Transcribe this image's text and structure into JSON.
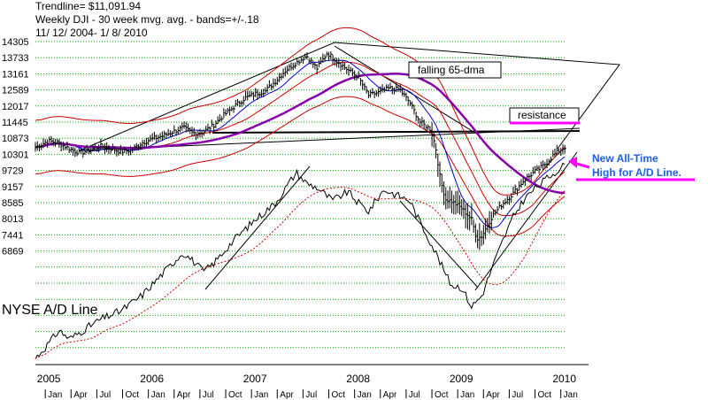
{
  "header": {
    "trendline": "Trendline= $11,091.94",
    "title": "Weekly DJI - 30 week mvg. avg. - bands=+/-.18",
    "date_range": "11/ 12/ 2004- 1/ 8/ 2010"
  },
  "annotations": {
    "falling_dma": "falling 65-dma",
    "resistance": "resistance",
    "ad_high_line1": "New All-Time",
    "ad_high_line2": "High for A/D Line.",
    "ad_line_label": "NYSE A/D Line"
  },
  "colors": {
    "price": "#000000",
    "upper_band": "#cc0000",
    "lower_band": "#cc0000",
    "ma30": "#cc0000",
    "ma65": "#8800aa",
    "blue_ma": "#0000cc",
    "grid": "#00aa00",
    "ad_ma": "#cc0000",
    "highlight": "#ff00ff",
    "annotation_blue": "#1a5fe6"
  },
  "chart_data": {
    "type": "line",
    "y_ticks": [
      14305,
      13733,
      13161,
      12589,
      12017,
      11445,
      10873,
      10301,
      9729,
      9157,
      8585,
      8013,
      7441,
      6869
    ],
    "x_years": [
      "2005",
      "2006",
      "2007",
      "2008",
      "2009",
      "2010"
    ],
    "x_months": [
      "Jan",
      "Apr",
      "Jul",
      "Oct",
      "Jan",
      "Apr",
      "Jul",
      "Oct",
      "Jan",
      "Apr",
      "Jul",
      "Oct",
      "Jan",
      "Apr",
      "Jul",
      "Oct",
      "Jan",
      "Apr",
      "Jul",
      "Oct",
      "Jan"
    ],
    "x_range": [
      2004.87,
      2010.02
    ],
    "grid": true,
    "series": [
      {
        "key": "dji",
        "x": [
          2004.87,
          2005.0,
          2005.1,
          2005.2,
          2005.3,
          2005.4,
          2005.5,
          2005.6,
          2005.7,
          2005.8,
          2005.9,
          2006.0,
          2006.1,
          2006.2,
          2006.3,
          2006.4,
          2006.5,
          2006.6,
          2006.7,
          2006.8,
          2006.9,
          2007.0,
          2007.1,
          2007.2,
          2007.3,
          2007.4,
          2007.5,
          2007.6,
          2007.7,
          2007.8,
          2007.9,
          2008.0,
          2008.1,
          2008.2,
          2008.3,
          2008.4,
          2008.5,
          2008.6,
          2008.7,
          2008.75,
          2008.8,
          2008.85,
          2008.9,
          2009.0,
          2009.1,
          2009.15,
          2009.2,
          2009.3,
          2009.4,
          2009.5,
          2009.6,
          2009.7,
          2009.8,
          2009.9,
          2010.02
        ],
        "y": [
          10550,
          10780,
          10700,
          10500,
          10350,
          10450,
          10600,
          10500,
          10400,
          10450,
          10700,
          10850,
          10950,
          11100,
          11250,
          11050,
          11100,
          11350,
          11700,
          12000,
          12300,
          12450,
          12550,
          12900,
          13300,
          13550,
          13800,
          13350,
          13900,
          13600,
          13300,
          13050,
          12400,
          12500,
          12650,
          12600,
          12150,
          11450,
          11200,
          10600,
          9350,
          8700,
          8650,
          8400,
          8000,
          7300,
          7400,
          8100,
          8550,
          8900,
          9350,
          9650,
          9900,
          10300,
          10600
        ]
      },
      {
        "key": "ad_line",
        "x": [
          2004.87,
          2005.0,
          2005.1,
          2005.2,
          2005.3,
          2005.5,
          2005.7,
          2005.9,
          2006.1,
          2006.3,
          2006.4,
          2006.5,
          2006.6,
          2006.8,
          2007.0,
          2007.2,
          2007.4,
          2007.5,
          2007.6,
          2007.75,
          2007.9,
          2008.0,
          2008.1,
          2008.25,
          2008.4,
          2008.5,
          2008.6,
          2008.7,
          2008.8,
          2008.9,
          2009.0,
          2009.1,
          2009.2,
          2009.3,
          2009.4,
          2009.5,
          2009.6,
          2009.7,
          2009.85,
          2010.02
        ],
        "y": [
          5000,
          5350,
          5650,
          5450,
          5600,
          5900,
          6100,
          6450,
          6950,
          7450,
          7250,
          7000,
          7200,
          7750,
          8200,
          8600,
          9300,
          9050,
          8950,
          8650,
          8850,
          8600,
          8400,
          8900,
          8750,
          8650,
          8150,
          7700,
          7200,
          6700,
          6650,
          6200,
          6450,
          7100,
          7700,
          8250,
          8650,
          8900,
          9200,
          9500
        ]
      }
    ]
  }
}
